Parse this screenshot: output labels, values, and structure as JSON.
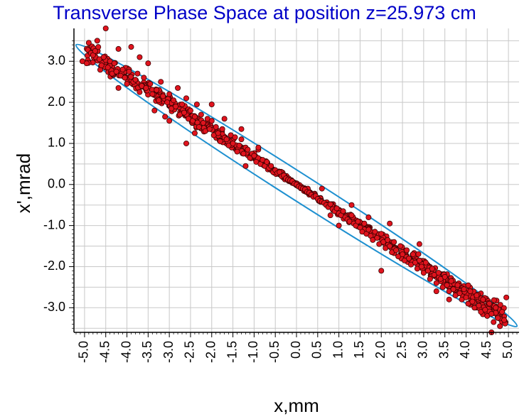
{
  "chart_data": {
    "type": "scatter",
    "title": "Transverse Phase Space at position z=25.973 cm",
    "xlabel": "x,mm",
    "ylabel": "x',mrad",
    "xlim": [
      -5.25,
      5.25
    ],
    "ylim": [
      -3.6,
      3.8
    ],
    "x_ticks": [
      "-5.0",
      "-4.5",
      "-4.0",
      "-3.5",
      "-3.0",
      "-2.5",
      "-2.0",
      "-1.5",
      "-1.0",
      "-0.5",
      "0.0",
      "0.5",
      "1.0",
      "1.5",
      "2.0",
      "2.5",
      "3.0",
      "3.5",
      "4.0",
      "4.5",
      "5.0"
    ],
    "y_ticks": [
      "3.0",
      "2.0",
      "1.0",
      "0.0",
      "-1.0",
      "-2.0",
      "-3.0"
    ],
    "grid": true,
    "colors": {
      "title": "#0000c8",
      "points": "#e0141e",
      "point_edge": "#3a0000",
      "ellipse": "#1e90d0",
      "grid": "#c8c8c8"
    },
    "ellipse": {
      "endpoints": [
        [
          -5.2,
          3.4
        ],
        [
          5.2,
          -3.45
        ]
      ],
      "minor_half_width_mrad": 0.22
    },
    "trend": {
      "slope": -0.655,
      "spread_mrad_at_edge": 0.24,
      "spread_mrad_at_center": 0.05
    },
    "series": [
      {
        "values": [
          [
            -5.05,
            3.0
          ],
          [
            -4.95,
            2.95
          ],
          [
            -4.9,
            3.45
          ],
          [
            -4.85,
            3.2
          ],
          [
            -4.8,
            3.15
          ],
          [
            -4.75,
            3.25
          ],
          [
            -4.7,
            3.5
          ],
          [
            -4.65,
            3.05
          ],
          [
            -4.6,
            2.9
          ],
          [
            -4.55,
            3.1
          ],
          [
            -4.5,
            3.8
          ],
          [
            -4.45,
            2.85
          ],
          [
            -4.4,
            3.0
          ],
          [
            -4.35,
            2.7
          ],
          [
            -4.3,
            2.95
          ],
          [
            -4.25,
            2.75
          ],
          [
            -4.2,
            3.3
          ],
          [
            -4.15,
            2.65
          ],
          [
            -4.1,
            2.8
          ],
          [
            -4.05,
            2.6
          ],
          [
            -4.0,
            2.45
          ],
          [
            -3.95,
            2.75
          ],
          [
            -3.9,
            3.35
          ],
          [
            -3.85,
            2.5
          ],
          [
            -3.8,
            2.55
          ],
          [
            -3.75,
            2.7
          ],
          [
            -3.7,
            3.1
          ],
          [
            -3.65,
            2.4
          ],
          [
            -3.6,
            2.6
          ],
          [
            -3.55,
            2.35
          ],
          [
            -3.5,
            2.95
          ],
          [
            -3.45,
            2.45
          ],
          [
            -3.4,
            2.2
          ],
          [
            -3.35,
            1.8
          ],
          [
            -3.3,
            2.3
          ],
          [
            -3.25,
            2.05
          ],
          [
            -3.2,
            2.5
          ],
          [
            -3.15,
            2.15
          ],
          [
            -3.1,
            1.65
          ],
          [
            -3.05,
            2.0
          ],
          [
            -3.0,
            2.2
          ],
          [
            -2.95,
            1.85
          ],
          [
            -2.9,
            2.05
          ],
          [
            -2.85,
            1.9
          ],
          [
            -2.8,
            2.35
          ],
          [
            -2.75,
            1.7
          ],
          [
            -2.7,
            1.95
          ],
          [
            -2.65,
            1.75
          ],
          [
            -2.6,
            2.1
          ],
          [
            -2.55,
            1.6
          ],
          [
            -2.5,
            1.8
          ],
          [
            -2.45,
            1.55
          ],
          [
            -2.4,
            1.65
          ],
          [
            -2.35,
            1.95
          ],
          [
            -2.3,
            1.4
          ],
          [
            -2.25,
            1.7
          ],
          [
            -2.2,
            1.5
          ],
          [
            -2.15,
            1.3
          ],
          [
            -2.1,
            1.6
          ],
          [
            -2.05,
            1.35
          ],
          [
            -2.0,
            1.55
          ],
          [
            -1.95,
            1.2
          ],
          [
            -1.9,
            1.4
          ],
          [
            -1.85,
            1.25
          ],
          [
            -1.8,
            1.05
          ],
          [
            -1.75,
            1.35
          ],
          [
            -1.7,
            1.6
          ],
          [
            -1.65,
            1.1
          ],
          [
            -1.6,
            0.95
          ],
          [
            -1.55,
            1.2
          ],
          [
            -1.5,
            1.0
          ],
          [
            -1.45,
            1.15
          ],
          [
            -1.4,
            0.8
          ],
          [
            -1.35,
            0.95
          ],
          [
            -1.3,
            1.1
          ],
          [
            -1.25,
            0.75
          ],
          [
            -1.2,
            0.9
          ],
          [
            -1.15,
            0.85
          ],
          [
            -1.1,
            0.65
          ],
          [
            -1.05,
            0.75
          ],
          [
            -1.0,
            0.7
          ],
          [
            -0.95,
            0.55
          ],
          [
            -0.9,
            0.85
          ],
          [
            -0.85,
            0.5
          ],
          [
            -0.8,
            0.6
          ],
          [
            -0.75,
            0.45
          ],
          [
            -0.7,
            0.55
          ],
          [
            -0.65,
            0.4
          ],
          [
            -0.6,
            0.45
          ],
          [
            -0.55,
            0.3
          ],
          [
            -0.5,
            0.35
          ],
          [
            -0.45,
            0.28
          ],
          [
            -0.4,
            0.3
          ],
          [
            -0.35,
            0.2
          ],
          [
            -0.3,
            0.22
          ],
          [
            -0.25,
            0.15
          ],
          [
            -0.2,
            0.12
          ],
          [
            -0.15,
            0.1
          ],
          [
            -0.1,
            0.08
          ],
          [
            -0.05,
            0.02
          ],
          [
            0.0,
            0.0
          ],
          [
            0.05,
            -0.05
          ],
          [
            0.1,
            -0.08
          ],
          [
            0.15,
            -0.1
          ],
          [
            0.2,
            -0.12
          ],
          [
            0.25,
            -0.18
          ],
          [
            0.3,
            -0.2
          ],
          [
            0.35,
            -0.25
          ],
          [
            0.4,
            -0.3
          ],
          [
            0.45,
            -0.28
          ],
          [
            0.5,
            -0.35
          ],
          [
            0.55,
            -0.4
          ],
          [
            0.6,
            -0.42
          ],
          [
            0.65,
            -0.45
          ],
          [
            0.7,
            -0.5
          ],
          [
            0.75,
            -0.55
          ],
          [
            0.8,
            -0.48
          ],
          [
            0.85,
            -0.6
          ],
          [
            0.9,
            -0.65
          ],
          [
            0.95,
            -0.58
          ],
          [
            1.0,
            -0.7
          ],
          [
            1.05,
            -0.75
          ],
          [
            1.1,
            -0.65
          ],
          [
            1.15,
            -0.8
          ],
          [
            1.2,
            -0.85
          ],
          [
            1.25,
            -0.9
          ],
          [
            1.3,
            -0.75
          ],
          [
            1.35,
            -0.95
          ],
          [
            1.4,
            -1.0
          ],
          [
            1.45,
            -0.9
          ],
          [
            1.5,
            -1.05
          ],
          [
            1.55,
            -1.15
          ],
          [
            1.6,
            -0.95
          ],
          [
            1.65,
            -1.2
          ],
          [
            1.7,
            -1.1
          ],
          [
            1.75,
            -1.25
          ],
          [
            1.8,
            -1.35
          ],
          [
            1.85,
            -1.15
          ],
          [
            1.9,
            -1.3
          ],
          [
            1.95,
            -1.45
          ],
          [
            2.0,
            -1.2
          ],
          [
            2.05,
            -1.4
          ],
          [
            2.1,
            -1.55
          ],
          [
            2.15,
            -1.35
          ],
          [
            2.2,
            -1.5
          ],
          [
            2.25,
            -1.65
          ],
          [
            2.3,
            -1.4
          ],
          [
            2.35,
            -1.6
          ],
          [
            2.4,
            -1.75
          ],
          [
            2.45,
            -1.5
          ],
          [
            2.5,
            -1.7
          ],
          [
            2.55,
            -1.85
          ],
          [
            2.6,
            -1.6
          ],
          [
            2.65,
            -1.8
          ],
          [
            2.7,
            -1.95
          ],
          [
            2.75,
            -1.7
          ],
          [
            2.8,
            -1.9
          ],
          [
            2.85,
            -2.05
          ],
          [
            2.9,
            -1.85
          ],
          [
            2.95,
            -2.0
          ],
          [
            3.0,
            -2.15
          ],
          [
            3.05,
            -1.9
          ],
          [
            3.1,
            -2.1
          ],
          [
            3.15,
            -2.3
          ],
          [
            3.2,
            -2.05
          ],
          [
            3.25,
            -2.2
          ],
          [
            3.3,
            -2.4
          ],
          [
            3.35,
            -2.15
          ],
          [
            3.4,
            -2.3
          ],
          [
            3.45,
            -2.5
          ],
          [
            3.5,
            -2.25
          ],
          [
            3.55,
            -2.45
          ],
          [
            3.6,
            -2.6
          ],
          [
            3.65,
            -2.35
          ],
          [
            3.7,
            -2.55
          ],
          [
            3.75,
            -2.7
          ],
          [
            3.8,
            -2.45
          ],
          [
            3.85,
            -2.65
          ],
          [
            3.9,
            -2.8
          ],
          [
            3.95,
            -2.55
          ],
          [
            4.0,
            -2.75
          ],
          [
            4.05,
            -2.9
          ],
          [
            4.1,
            -2.6
          ],
          [
            4.15,
            -2.85
          ],
          [
            4.2,
            -3.0
          ],
          [
            4.25,
            -2.7
          ],
          [
            4.3,
            -2.95
          ],
          [
            4.35,
            -3.1
          ],
          [
            4.4,
            -2.8
          ],
          [
            4.45,
            -3.05
          ],
          [
            4.5,
            -3.2
          ],
          [
            4.55,
            -2.9
          ],
          [
            4.6,
            -3.15
          ],
          [
            4.65,
            -3.35
          ],
          [
            4.7,
            -3.0
          ],
          [
            4.75,
            -3.25
          ],
          [
            4.8,
            -3.45
          ],
          [
            4.85,
            -3.1
          ],
          [
            4.9,
            -3.3
          ],
          [
            4.95,
            -2.75
          ],
          [
            -2.6,
            1.0
          ],
          [
            -2.4,
            1.25
          ],
          [
            -1.2,
            0.45
          ],
          [
            -0.9,
            0.9
          ],
          [
            0.6,
            -0.1
          ],
          [
            1.0,
            -1.0
          ],
          [
            1.7,
            -0.8
          ],
          [
            2.0,
            -2.1
          ],
          [
            2.2,
            -0.95
          ],
          [
            2.9,
            -1.45
          ],
          [
            3.3,
            -2.6
          ],
          [
            3.6,
            -2.8
          ],
          [
            -3.7,
            2.25
          ],
          [
            -4.2,
            2.35
          ],
          [
            -3.0,
            1.55
          ],
          [
            -1.3,
            1.35
          ],
          [
            -2.0,
            1.95
          ],
          [
            0.8,
            -0.75
          ],
          [
            1.3,
            -0.5
          ],
          [
            4.6,
            -3.6
          ]
        ]
      }
    ]
  }
}
